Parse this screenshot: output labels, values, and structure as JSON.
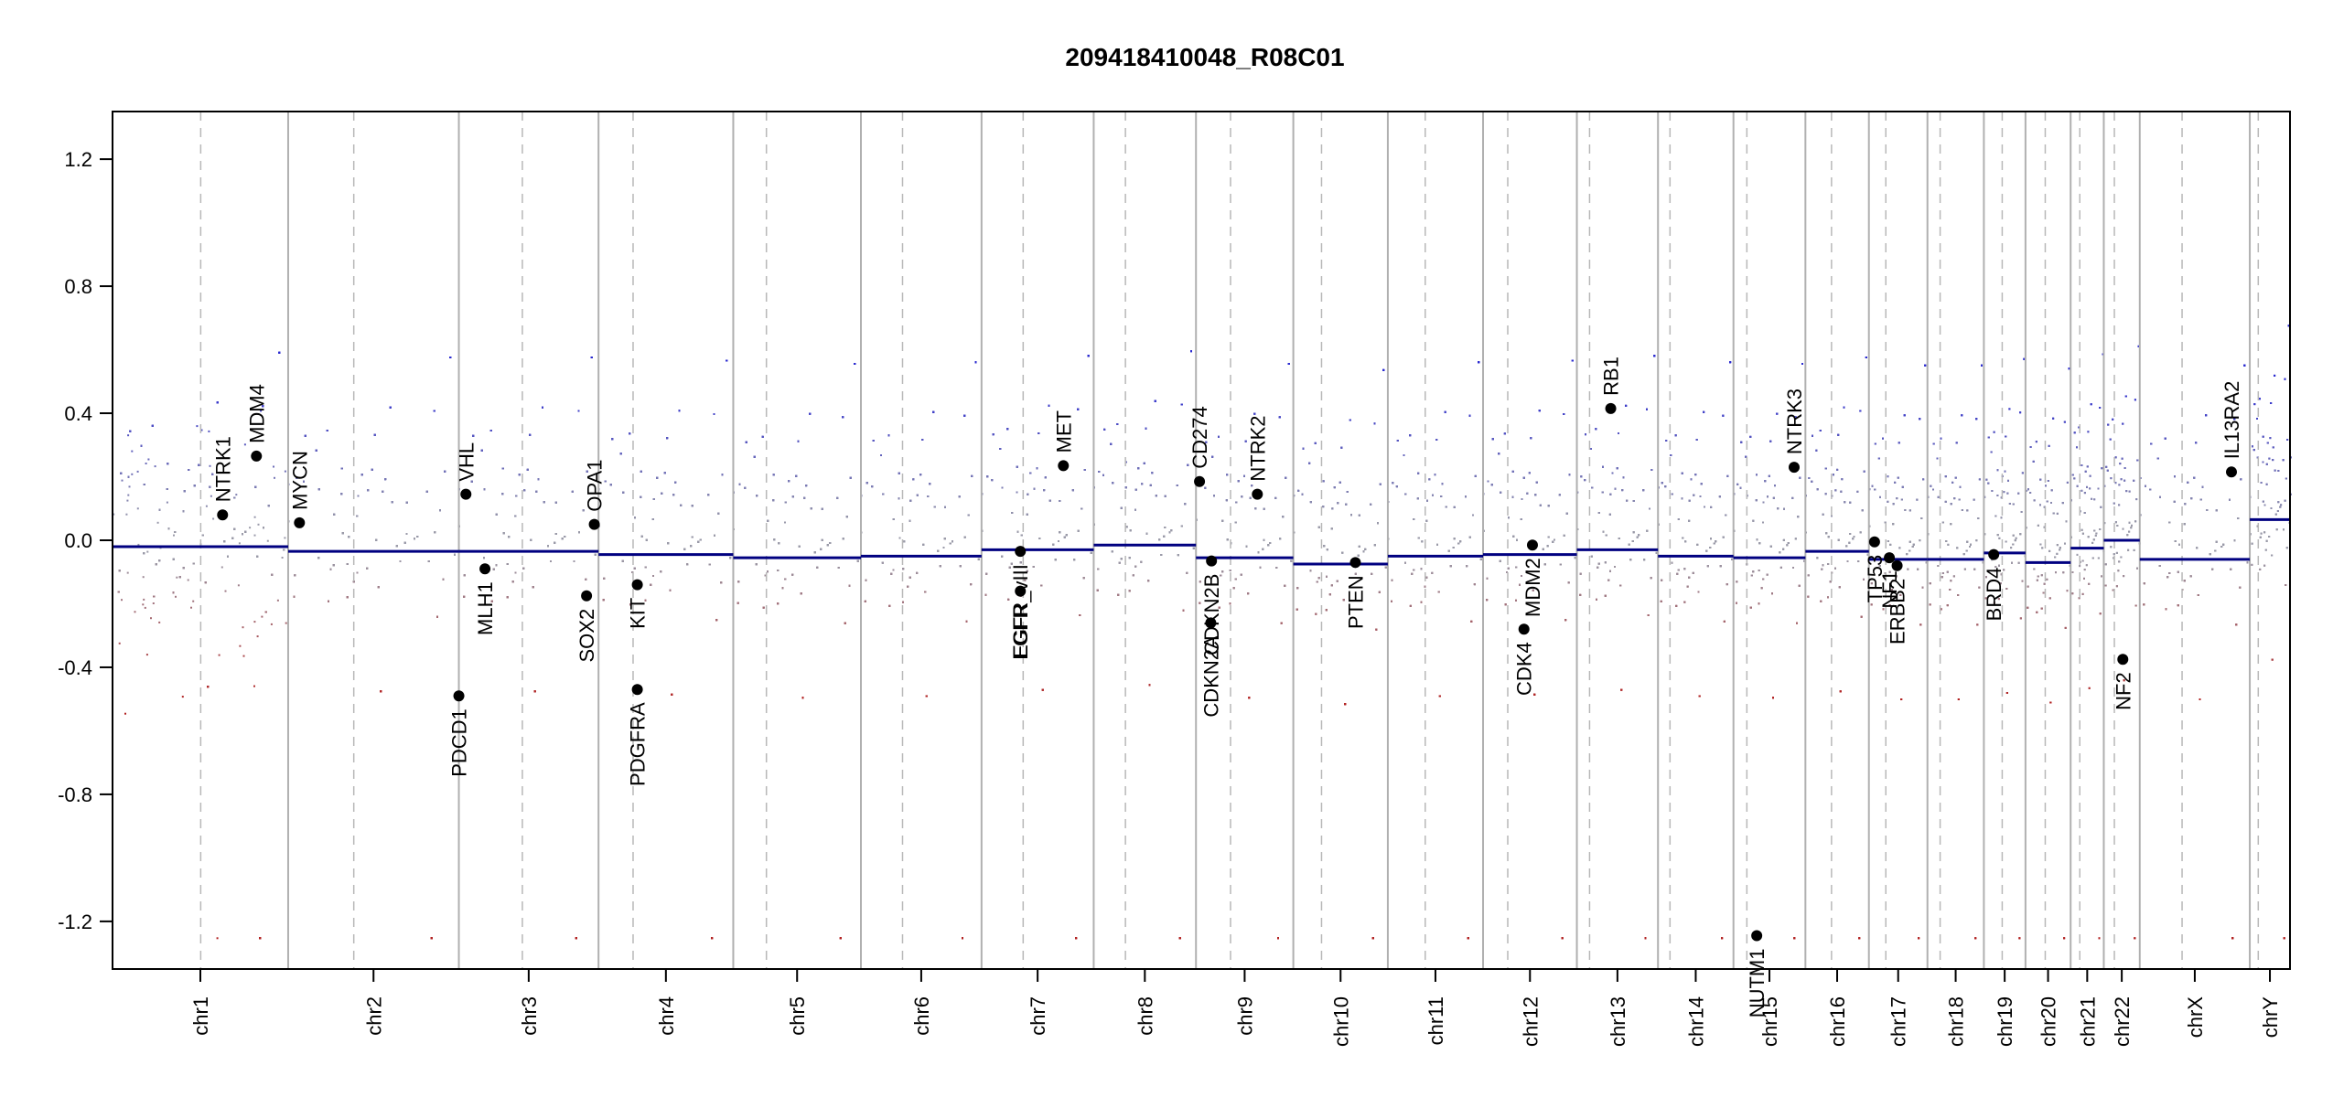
{
  "chart_data": {
    "type": "scatter",
    "title": "209418410048_R08C01",
    "xlabel": "",
    "ylabel": "",
    "ylim": [
      -1.35,
      1.35
    ],
    "y_ticks": [
      -1.2,
      -0.8,
      -0.4,
      0.0,
      0.4,
      0.8,
      1.2
    ],
    "y_tick_labels": [
      "-1.2",
      "-0.8",
      "-0.4",
      "0.0",
      "0.4",
      "0.8",
      "1.2"
    ],
    "grid": false,
    "chromosomes": [
      {
        "name": "chr1",
        "start": 0,
        "end": 249,
        "centromere": 125,
        "segment": -0.02
      },
      {
        "name": "chr2",
        "start": 249,
        "end": 491,
        "centromere": 342,
        "segment": -0.035
      },
      {
        "name": "chr3",
        "start": 491,
        "end": 689,
        "centromere": 581,
        "segment": -0.035
      },
      {
        "name": "chr4",
        "start": 689,
        "end": 880,
        "centromere": 738,
        "segment": -0.045
      },
      {
        "name": "chr5",
        "start": 880,
        "end": 1061,
        "centromere": 927,
        "segment": -0.055
      },
      {
        "name": "chr6",
        "start": 1061,
        "end": 1232,
        "centromere": 1120,
        "segment": -0.05
      },
      {
        "name": "chr7",
        "start": 1232,
        "end": 1391,
        "centromere": 1291,
        "segment": -0.03
      },
      {
        "name": "chr8",
        "start": 1391,
        "end": 1536,
        "centromere": 1436,
        "segment": -0.015
      },
      {
        "name": "chr9",
        "start": 1536,
        "end": 1674,
        "centromere": 1585,
        "segment": -0.055
      },
      {
        "name": "chr10",
        "start": 1674,
        "end": 1808,
        "centromere": 1714,
        "segment": -0.075
      },
      {
        "name": "chr11",
        "start": 1808,
        "end": 1943,
        "centromere": 1861,
        "segment": -0.05
      },
      {
        "name": "chr12",
        "start": 1943,
        "end": 2076,
        "centromere": 1978,
        "segment": -0.045
      },
      {
        "name": "chr13",
        "start": 2076,
        "end": 2191,
        "centromere": 2094,
        "segment": -0.03
      },
      {
        "name": "chr14",
        "start": 2191,
        "end": 2298,
        "centromere": 2208,
        "segment": -0.05
      },
      {
        "name": "chr15",
        "start": 2298,
        "end": 2400,
        "centromere": 2317,
        "segment": -0.055
      },
      {
        "name": "chr16",
        "start": 2400,
        "end": 2490,
        "centromere": 2437,
        "segment": -0.035
      },
      {
        "name": "chr17",
        "start": 2490,
        "end": 2573,
        "centromere": 2514,
        "segment": -0.06
      },
      {
        "name": "chr18",
        "start": 2573,
        "end": 2653,
        "centromere": 2591,
        "segment": -0.06
      },
      {
        "name": "chr19",
        "start": 2653,
        "end": 2712,
        "centromere": 2679,
        "segment": -0.04
      },
      {
        "name": "chr20",
        "start": 2712,
        "end": 2776,
        "centromere": 2740,
        "segment": -0.07
      },
      {
        "name": "chr21",
        "start": 2776,
        "end": 2823,
        "centromere": 2789,
        "segment": -0.025
      },
      {
        "name": "chr22",
        "start": 2823,
        "end": 2874,
        "centromere": 2838,
        "segment": 0.0
      },
      {
        "name": "chrX",
        "start": 2874,
        "end": 3030,
        "centromere": 2934,
        "segment": -0.06
      },
      {
        "name": "chrY",
        "start": 3030,
        "end": 3087,
        "centromere": 3042,
        "segment": 0.065
      }
    ],
    "gene_annotations": [
      {
        "gene": "NTRK1",
        "x": 156,
        "y": 0.08
      },
      {
        "gene": "MDM4",
        "x": 204,
        "y": 0.265
      },
      {
        "gene": "MYCN",
        "x": 265,
        "y": 0.055
      },
      {
        "gene": "VHL",
        "x": 501,
        "y": 0.145
      },
      {
        "gene": "PDCD1",
        "x": 491,
        "y": -0.49
      },
      {
        "gene": "MLH1",
        "x": 528,
        "y": -0.09
      },
      {
        "gene": "SOX2",
        "x": 672,
        "y": -0.175
      },
      {
        "gene": "OPA1",
        "x": 683,
        "y": 0.05
      },
      {
        "gene": "KIT",
        "x": 744,
        "y": -0.14
      },
      {
        "gene": "PDGFRA",
        "x": 744,
        "y": -0.47
      },
      {
        "gene": "EGFR",
        "x": 1287,
        "y": -0.16
      },
      {
        "gene": "EGFR_vIII",
        "x": 1287,
        "y": -0.035
      },
      {
        "gene": "MET",
        "x": 1348,
        "y": 0.235
      },
      {
        "gene": "CD274",
        "x": 1541,
        "y": 0.185
      },
      {
        "gene": "CDKN2A",
        "x": 1557,
        "y": -0.26
      },
      {
        "gene": "CDKN2B",
        "x": 1558,
        "y": -0.065
      },
      {
        "gene": "NTRK2",
        "x": 1623,
        "y": 0.145
      },
      {
        "gene": "PTEN",
        "x": 1762,
        "y": -0.07
      },
      {
        "gene": "CDK4",
        "x": 2001,
        "y": -0.28
      },
      {
        "gene": "MDM2",
        "x": 2013,
        "y": -0.015
      },
      {
        "gene": "RB1",
        "x": 2124,
        "y": 0.415
      },
      {
        "gene": "NUTM1",
        "x": 2331,
        "y": -1.245
      },
      {
        "gene": "NTRK3",
        "x": 2384,
        "y": 0.23
      },
      {
        "gene": "TP53",
        "x": 2498,
        "y": -0.005
      },
      {
        "gene": "NF1",
        "x": 2519,
        "y": -0.055
      },
      {
        "gene": "ERBB2",
        "x": 2530,
        "y": -0.08
      },
      {
        "gene": "BRD4",
        "x": 2667,
        "y": -0.045
      },
      {
        "gene": "NF2",
        "x": 2850,
        "y": -0.375
      },
      {
        "gene": "IL13RA2",
        "x": 3004,
        "y": 0.215
      }
    ],
    "point_colors": {
      "gain": "#2b2bd0",
      "loss": "#b22222",
      "neutral": "#9a9aa8"
    },
    "segment_color": "#000080",
    "boundary_color": "#b0b0b0",
    "centromere_color": "#b8b8b8"
  }
}
